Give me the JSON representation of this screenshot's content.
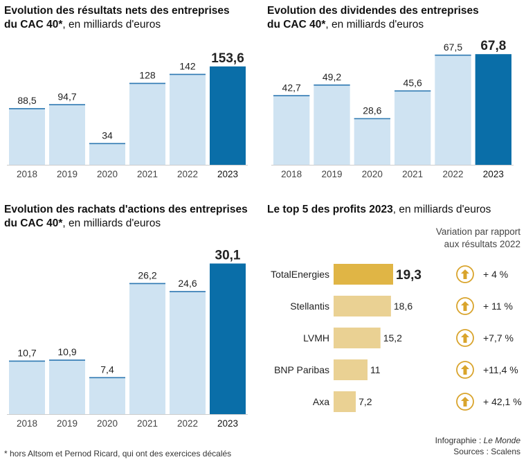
{
  "colors": {
    "light": "#cfe3f2",
    "light_edge": "#2f79b2",
    "dark": "#0a6ea8",
    "gold_main": "#e0b545",
    "gold": "#ead193",
    "arrow_ring": "#d9a42c"
  },
  "chart_data": [
    {
      "type": "bar",
      "title": "Evolution des résultats nets des entreprises du CAC 40*",
      "title_line1": "Evolution des résultats nets des entreprises",
      "title_line2_bold": "du CAC 40*",
      "title_line2_rest": ", en milliards d'euros",
      "unit": "milliards d'euros",
      "categories": [
        "2018",
        "2019",
        "2020",
        "2021",
        "2022",
        "2023"
      ],
      "values": [
        88.5,
        94.7,
        34,
        128,
        142,
        153.6
      ],
      "labels": [
        "88,5",
        "94,7",
        "34",
        "128",
        "142",
        "153,6"
      ],
      "highlight_index": 5,
      "ylim": [
        0,
        160
      ]
    },
    {
      "type": "bar",
      "title": "Evolution des dividendes des entreprises du CAC 40*",
      "title_line1": "Evolution des dividendes des entreprises",
      "title_line2_bold": "du CAC 40*",
      "title_line2_rest": ", en milliards d'euros",
      "unit": "milliards d'euros",
      "categories": [
        "2018",
        "2019",
        "2020",
        "2021",
        "2022",
        "2023"
      ],
      "values": [
        42.7,
        49.2,
        28.6,
        45.6,
        67.5,
        67.8
      ],
      "labels": [
        "42,7",
        "49,2",
        "28,6",
        "45,6",
        "67,5",
        "67,8"
      ],
      "highlight_index": 5,
      "ylim": [
        0,
        70
      ]
    },
    {
      "type": "bar",
      "title": "Evolution des rachats d'actions des entreprises du CAC 40*",
      "title_line1": "Evolution des rachats d'actions des entreprises",
      "title_line2_bold": "du CAC 40*",
      "title_line2_rest": ", en milliards d'euros",
      "unit": "milliards d'euros",
      "categories": [
        "2018",
        "2019",
        "2020",
        "2021",
        "2022",
        "2023"
      ],
      "values": [
        10.7,
        10.9,
        7.4,
        26.2,
        24.6,
        30.1
      ],
      "labels": [
        "10,7",
        "10,9",
        "7,4",
        "26,2",
        "24,6",
        "30,1"
      ],
      "highlight_index": 5,
      "ylim": [
        0,
        31
      ]
    },
    {
      "type": "bar",
      "orientation": "horizontal",
      "title": "Le top 5 des profits 2023, en milliards d'euros",
      "title_bold": "Le top 5 des profits 2023",
      "title_rest": ", en milliards d'euros",
      "variation_header_line1": "Variation par rapport",
      "variation_header_line2": "aux résultats 2022",
      "categories": [
        "TotalEnergies",
        "Stellantis",
        "LVMH",
        "BNP Paribas",
        "Axa"
      ],
      "values": [
        19.3,
        18.6,
        15.2,
        11,
        7.2
      ],
      "labels": [
        "19,3",
        "18,6",
        "15,2",
        "11",
        "7,2"
      ],
      "variations": [
        "+ 4 %",
        "+ 11 %",
        "+7,7 %",
        "+11,4 %",
        "+ 42,1 %"
      ],
      "highlight_index": 0,
      "xlim": [
        0,
        19.3
      ]
    }
  ],
  "footer": {
    "note": "* hors Altsom et Pernod Ricard, qui ont des exercices décalés",
    "credit_prefix": "Infographie : ",
    "credit_italic": "Le Monde",
    "sources": "Sources : Scalens"
  }
}
